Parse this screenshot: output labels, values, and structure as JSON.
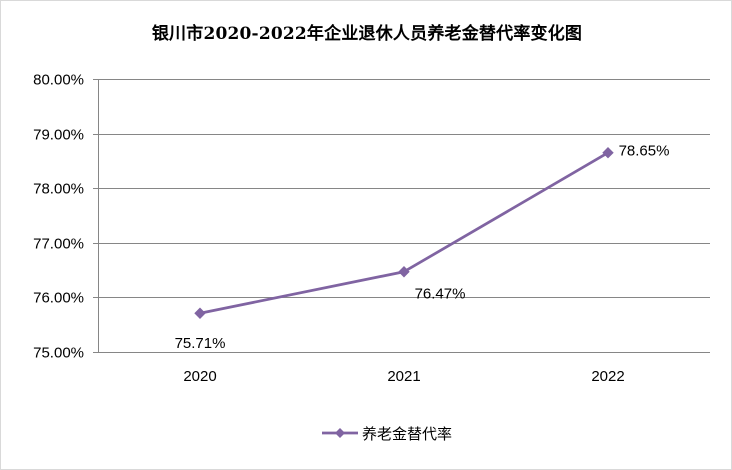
{
  "chart_data": {
    "type": "line",
    "title": "银川市2020-2022年企业退休人员养老金替代率变化图",
    "xlabel": "",
    "ylabel": "",
    "categories": [
      "2020",
      "2021",
      "2022"
    ],
    "series": [
      {
        "name": "养老金替代率",
        "values": [
          75.71,
          76.47,
          78.65
        ],
        "data_labels": [
          "75.71%",
          "76.47%",
          "78.65%"
        ],
        "color": "#8064a2",
        "marker": "diamond"
      }
    ],
    "ylim": [
      75,
      80
    ],
    "yticks": [
      75,
      76,
      77,
      78,
      79,
      80
    ],
    "ytick_labels": [
      "75.00%",
      "76.00%",
      "77.00%",
      "78.00%",
      "79.00%",
      "80.00%"
    ],
    "grid": true,
    "legend_position": "bottom"
  }
}
